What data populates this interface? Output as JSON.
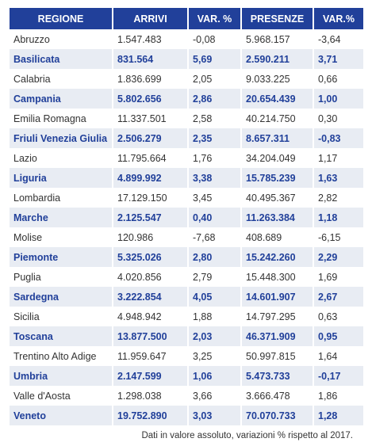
{
  "table": {
    "header": [
      "REGIONE",
      "ARRIVI",
      "VAR. %",
      "PRESENZE",
      "VAR.%"
    ],
    "rows": [
      [
        "Abruzzo",
        "1.547.483",
        "-0,08",
        "5.968.157",
        "-3,64"
      ],
      [
        "Basilicata",
        "831.564",
        "5,69",
        "2.590.211",
        "3,71"
      ],
      [
        "Calabria",
        "1.836.699",
        "2,05",
        "9.033.225",
        "0,66"
      ],
      [
        "Campania",
        "5.802.656",
        "2,86",
        "20.654.439",
        "1,00"
      ],
      [
        "Emilia Romagna",
        "11.337.501",
        "2,58",
        "40.214.750",
        "0,30"
      ],
      [
        "Friuli Venezia Giulia",
        "2.506.279",
        "2,35",
        "8.657.311",
        "-0,83"
      ],
      [
        "Lazio",
        "11.795.664",
        "1,76",
        "34.204.049",
        "1,17"
      ],
      [
        "Liguria",
        "4.899.992",
        "3,38",
        "15.785.239",
        "1,63"
      ],
      [
        "Lombardia",
        "17.129.150",
        "3,45",
        "40.495.367",
        "2,82"
      ],
      [
        "Marche",
        "2.125.547",
        "0,40",
        "11.263.384",
        "1,18"
      ],
      [
        "Molise",
        "120.986",
        "-7,68",
        "408.689",
        "-6,15"
      ],
      [
        "Piemonte",
        "5.325.026",
        "2,80",
        "15.242.260",
        "2,29"
      ],
      [
        "Puglia",
        "4.020.856",
        "2,79",
        "15.448.300",
        "1,69"
      ],
      [
        "Sardegna",
        "3.222.854",
        "4,05",
        "14.601.907",
        "2,67"
      ],
      [
        "Sicilia",
        "4.948.942",
        "1,88",
        "14.797.295",
        "0,63"
      ],
      [
        "Toscana",
        "13.877.500",
        "2,03",
        "46.371.909",
        "0,95"
      ],
      [
        "Trentino Alto Adige",
        "11.959.647",
        "3,25",
        "50.997.815",
        "1,64"
      ],
      [
        "Umbria",
        "2.147.599",
        "1,06",
        "5.473.733",
        "-0,17"
      ],
      [
        "Valle d'Aosta",
        "1.298.038",
        "3,66",
        "3.666.478",
        "1,86"
      ],
      [
        "Veneto",
        "19.752.890",
        "3,03",
        "70.070.733",
        "1,28"
      ]
    ]
  },
  "footer": "Dati in valore assoluto, variazioni % rispetto  al 2017."
}
